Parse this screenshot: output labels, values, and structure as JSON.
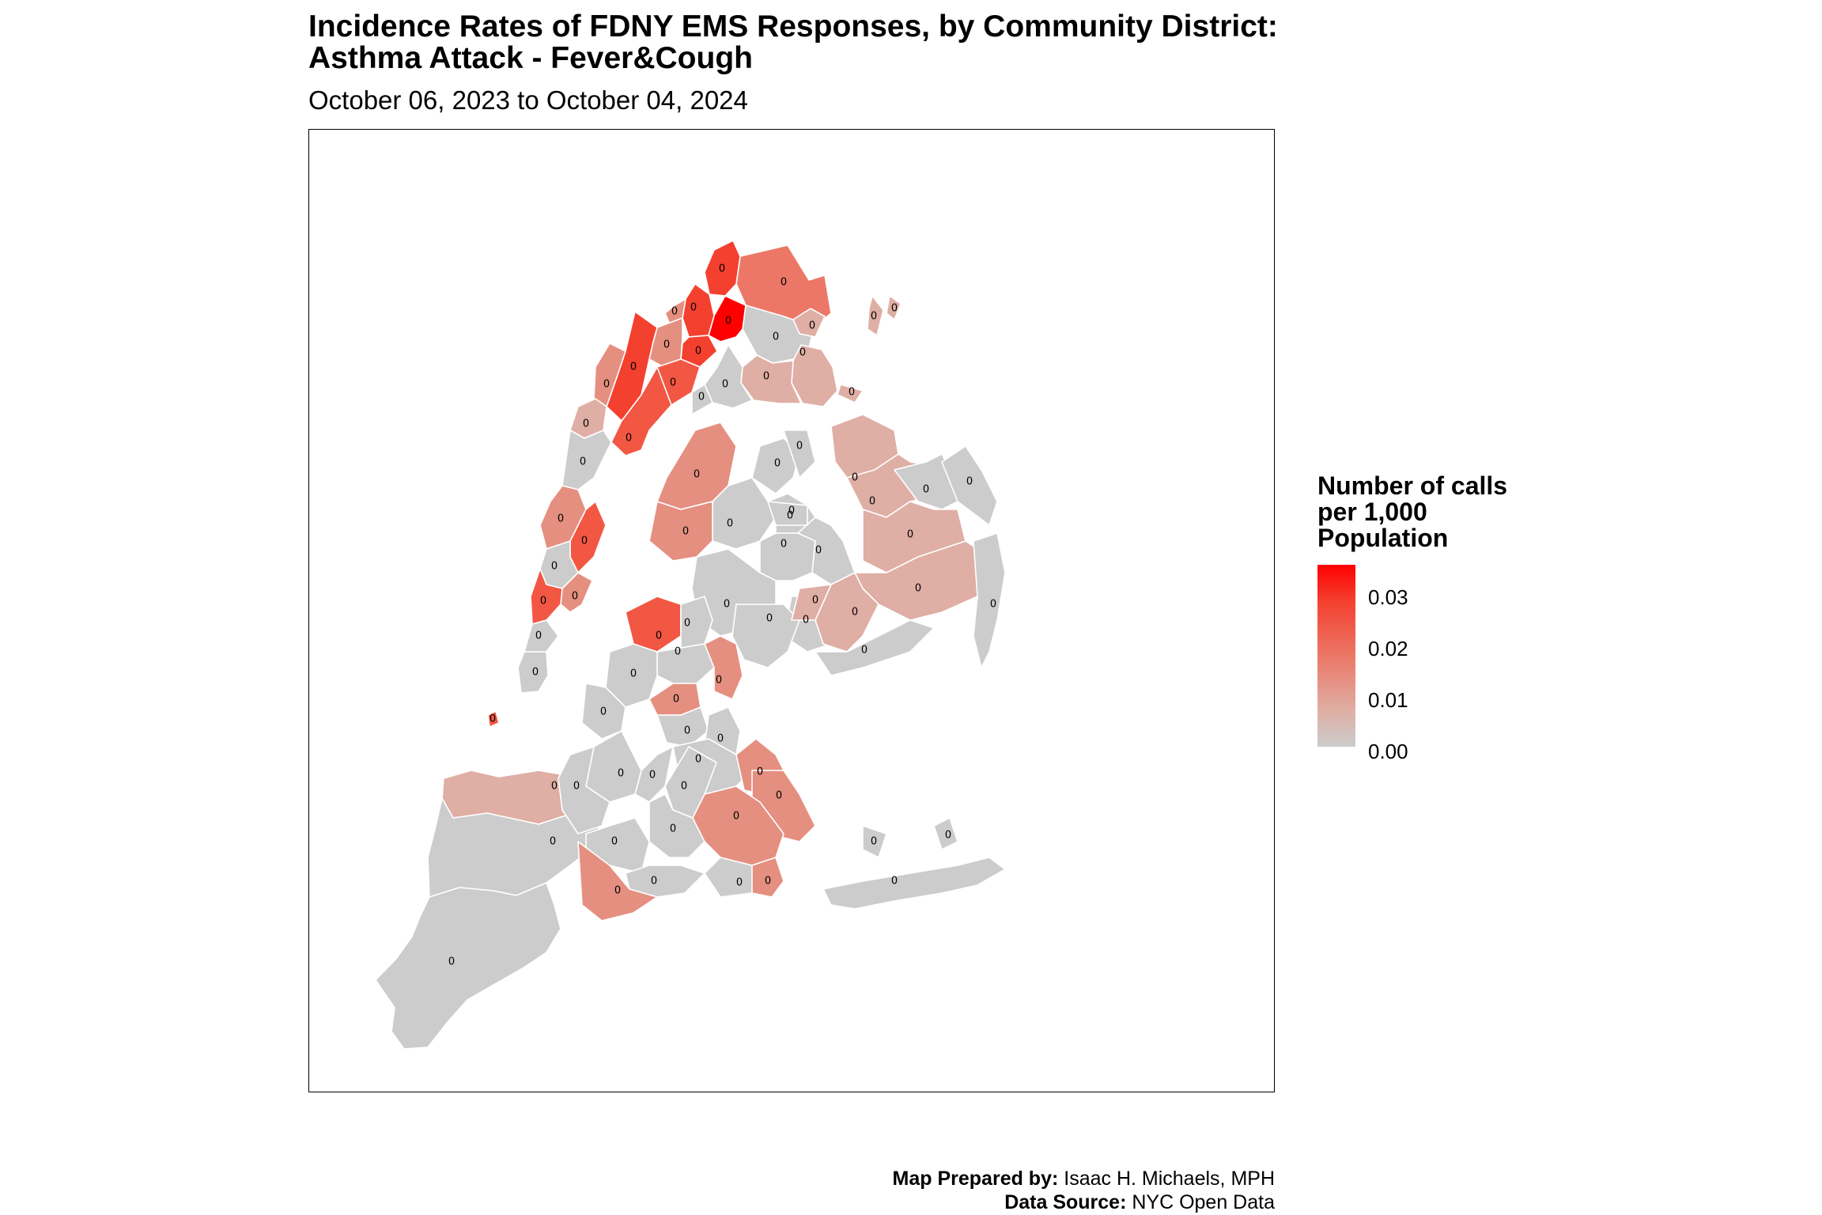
{
  "title_line1": "Incidence Rates of FDNY EMS Responses, by Community District:",
  "title_line2": "Asthma Attack - Fever&Cough",
  "subtitle": "October 06, 2023 to October 04, 2024",
  "legend": {
    "title_line1": "Number of calls",
    "title_line2": "per 1,000",
    "title_line3": "Population",
    "ticks": [
      "0.03",
      "0.02",
      "0.01",
      "0.00"
    ],
    "colors": {
      "high": "#ff0000",
      "mid": "#ec7767",
      "low": "#cccccc"
    },
    "range": [
      0,
      0.036
    ]
  },
  "caption": {
    "prepared_label": "Map Prepared by:",
    "prepared_value": " Isaac H. Michaels, MPH",
    "source_label": "Data Source:",
    "source_value": " NYC Open Data"
  },
  "district_label": "0",
  "colors": {
    "missing": "#cccccc",
    "border": "#ffffff",
    "water": "#ffffff"
  }
}
